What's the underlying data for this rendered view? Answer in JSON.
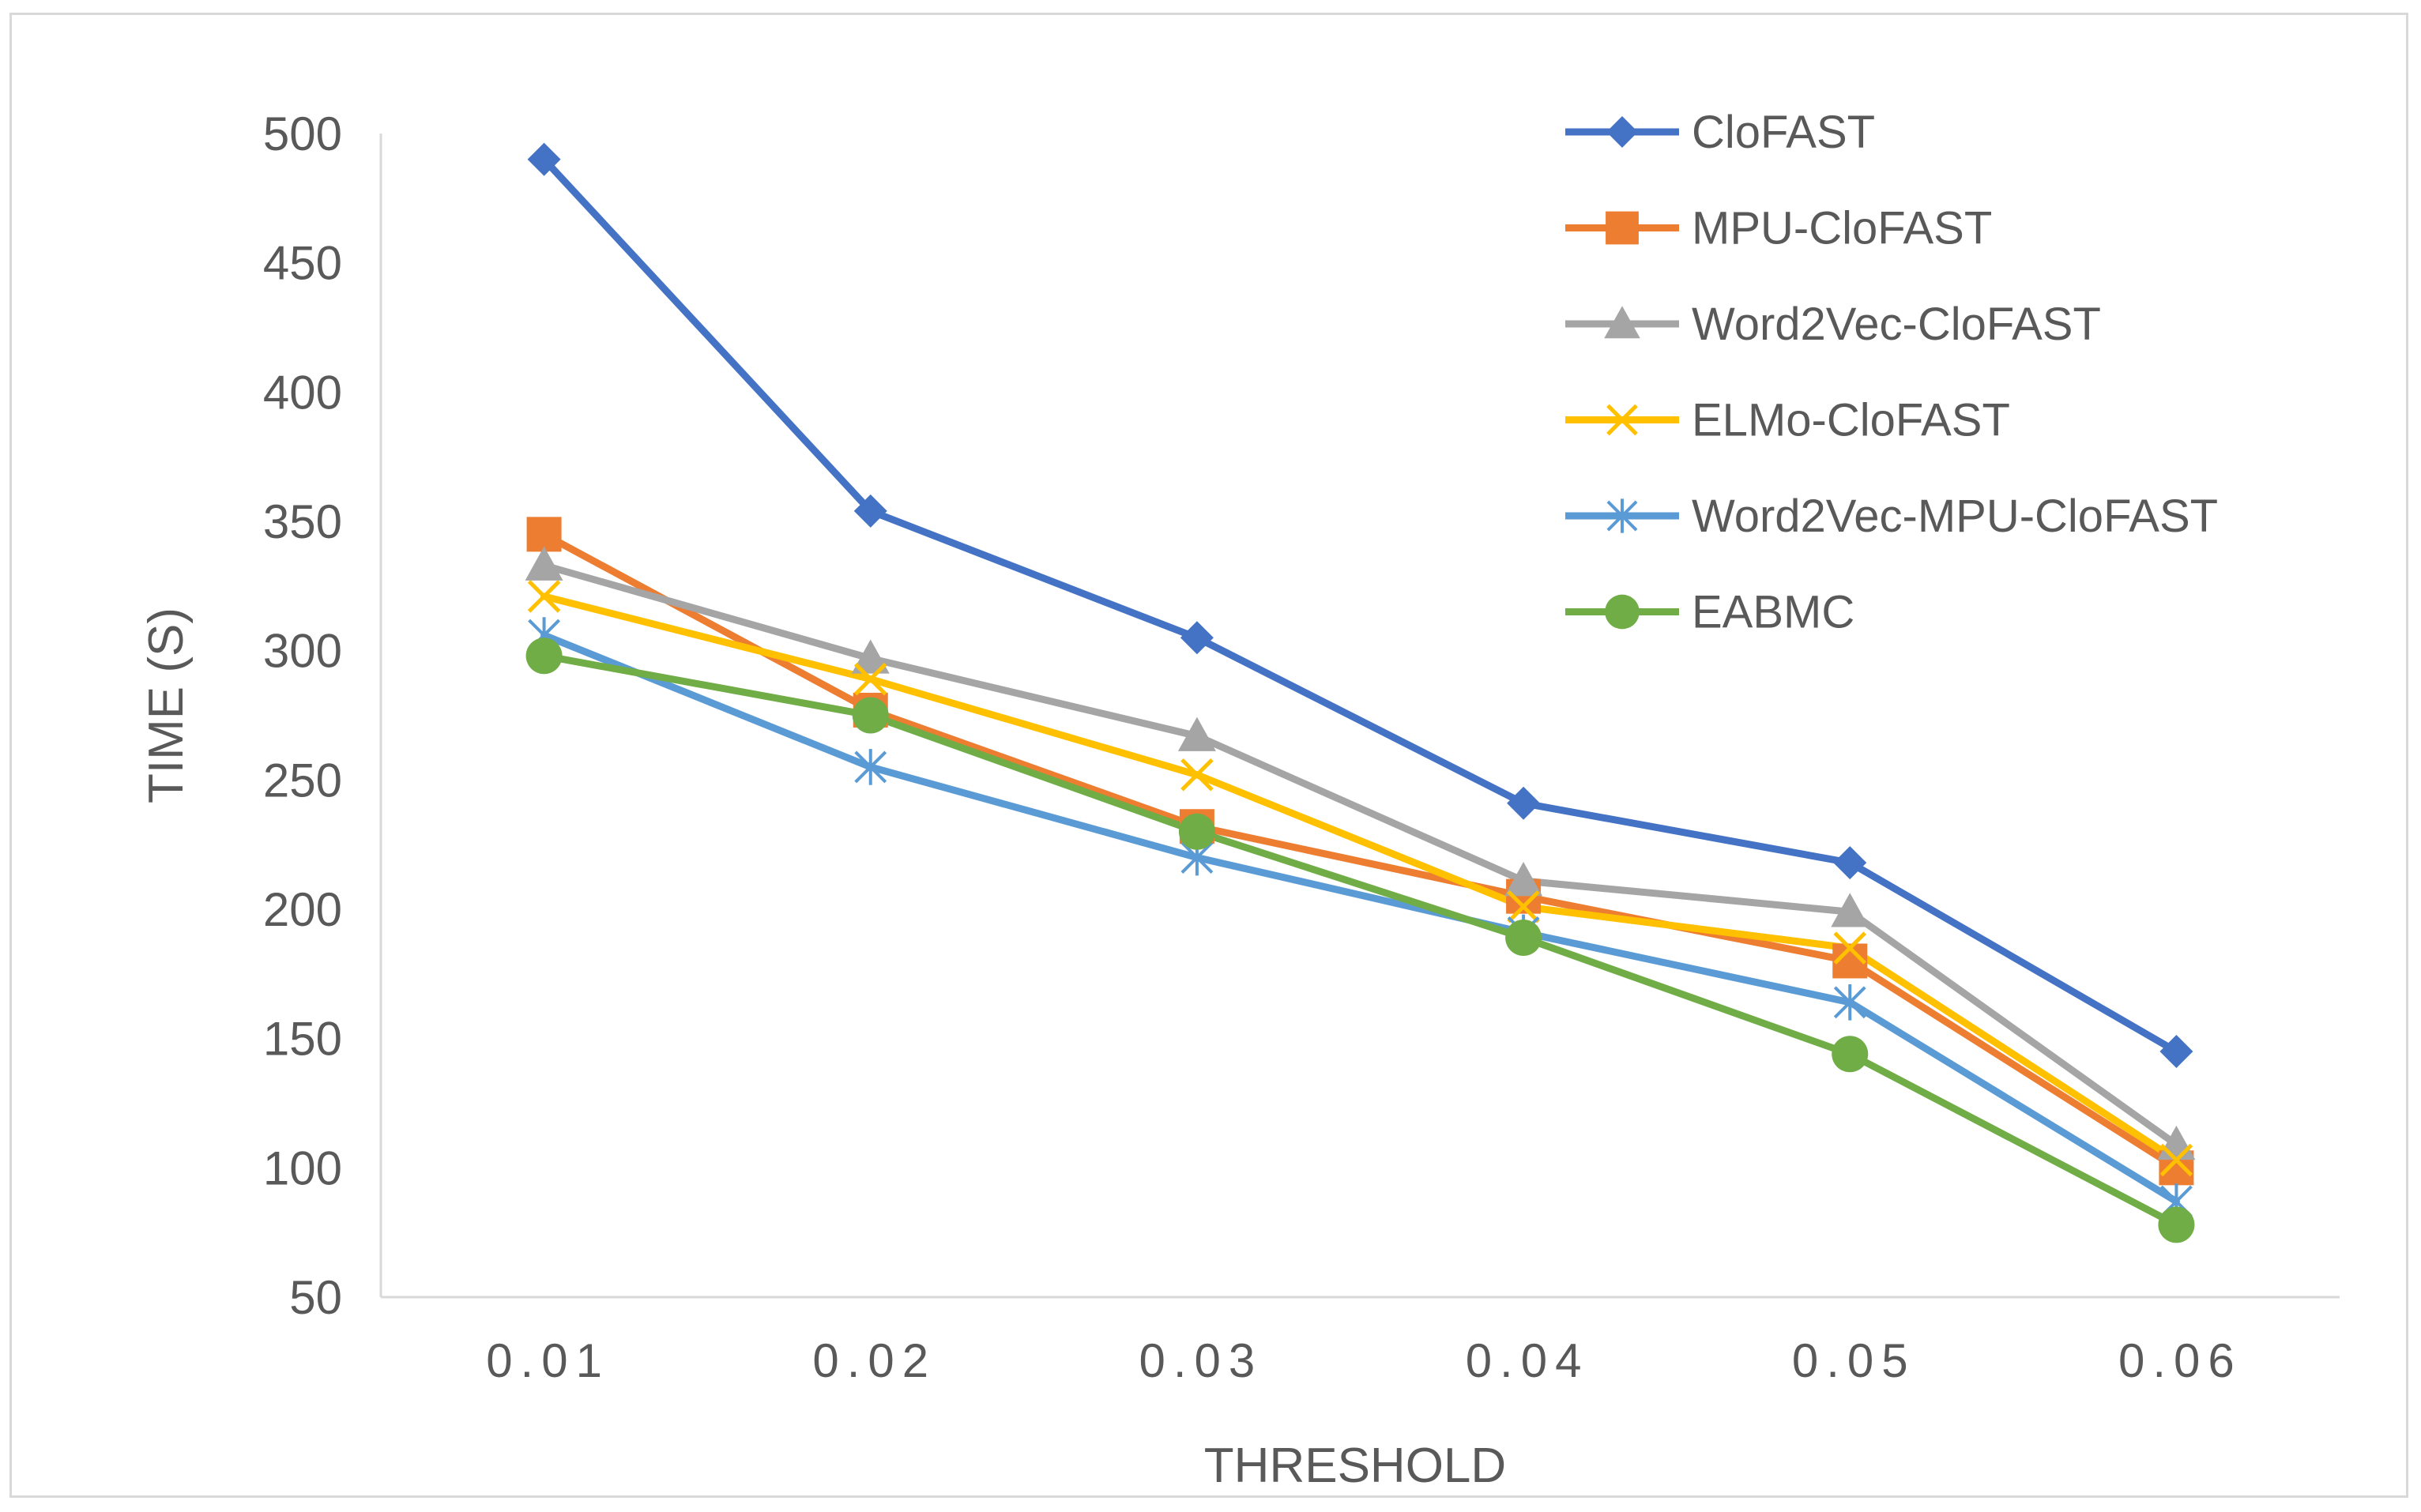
{
  "chart_data": {
    "type": "line",
    "title": "",
    "xlabel": "THRESHOLD",
    "ylabel": "TIME (S)",
    "categories": [
      "0.01",
      "0.02",
      "0.03",
      "0.04",
      "0.05",
      "0.06"
    ],
    "ylim": [
      50,
      500
    ],
    "yticks": [
      "500",
      "450",
      "400",
      "350",
      "300",
      "250",
      "200",
      "150",
      "100",
      "50"
    ],
    "grid": false,
    "legend_position": "top-right",
    "series": [
      {
        "name": "CloFAST",
        "color": "#4472C4",
        "marker": "diamond",
        "values": [
          490,
          354,
          305,
          241,
          218,
          145
        ]
      },
      {
        "name": "MPU-CloFAST",
        "color": "#ED7D31",
        "marker": "square",
        "values": [
          345,
          277,
          232,
          205,
          180,
          100
        ]
      },
      {
        "name": "Word2Vec-CloFAST",
        "color": "#A5A5A5",
        "marker": "triangle",
        "values": [
          333,
          297,
          267,
          211,
          199,
          109
        ]
      },
      {
        "name": "ELMo-CloFAST",
        "color": "#FFC000",
        "marker": "x",
        "values": [
          321,
          289,
          252,
          201,
          185,
          103
        ]
      },
      {
        "name": "Word2Vec-MPU-CloFAST",
        "color": "#5B9BD5",
        "marker": "star",
        "values": [
          306,
          255,
          220,
          191,
          164,
          87
        ]
      },
      {
        "name": "EABMC",
        "color": "#70AD47",
        "marker": "circle",
        "values": [
          298,
          275,
          230,
          189,
          144,
          78
        ]
      }
    ]
  }
}
